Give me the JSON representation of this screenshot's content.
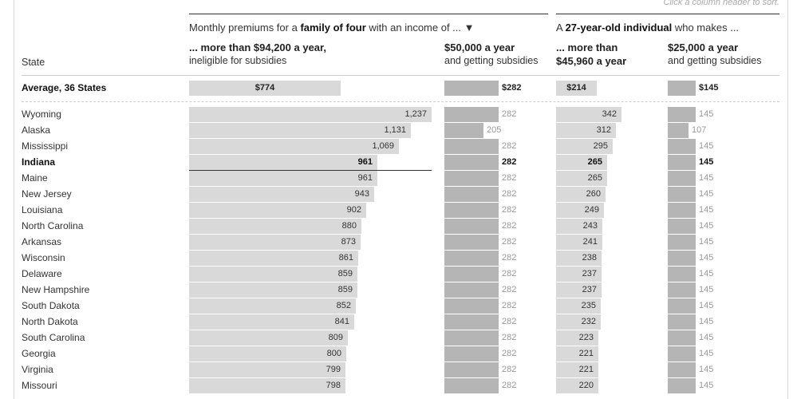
{
  "sort_hint": "Click a column header to sort.",
  "groups": [
    {
      "pre": "Monthly premiums for a ",
      "bold": "family of four",
      "post": " with an income of ... ▼"
    },
    {
      "pre": "A ",
      "bold": "27-year-old individual",
      "post": " who makes ..."
    }
  ],
  "columns": [
    {
      "line1": "... more than $94,200 a year,",
      "line2": "ineligible for subsidies"
    },
    {
      "line1": "$50,000 a year",
      "line2": "and getting subsidies"
    },
    {
      "line1": "... more than",
      "line2": "$45,960 a year"
    },
    {
      "line1": "$25,000 a year",
      "line2": "and getting subsidies"
    }
  ],
  "state_header": "State",
  "colors": {
    "bar_light": "#d9d9d9",
    "bar_dark": "#b5b5b5",
    "text_dark": "#333333",
    "text_muted": "#999999"
  },
  "chart_data": {
    "type": "bar",
    "orientation": "horizontal",
    "average": {
      "label": "Average, 36 States",
      "values": [
        "$774",
        "$282",
        "$214",
        "$145"
      ],
      "numeric": [
        774,
        282,
        214,
        145
      ]
    },
    "highlight": "Indiana",
    "rows": [
      {
        "state": "Wyoming",
        "values": [
          1237,
          282,
          342,
          145
        ]
      },
      {
        "state": "Alaska",
        "values": [
          1131,
          205,
          312,
          107
        ]
      },
      {
        "state": "Mississippi",
        "values": [
          1069,
          282,
          295,
          145
        ]
      },
      {
        "state": "Indiana",
        "values": [
          961,
          282,
          265,
          145
        ]
      },
      {
        "state": "Maine",
        "values": [
          961,
          282,
          265,
          145
        ]
      },
      {
        "state": "New Jersey",
        "values": [
          943,
          282,
          260,
          145
        ]
      },
      {
        "state": "Louisiana",
        "values": [
          902,
          282,
          249,
          145
        ]
      },
      {
        "state": "North Carolina",
        "values": [
          880,
          282,
          243,
          145
        ]
      },
      {
        "state": "Arkansas",
        "values": [
          873,
          282,
          241,
          145
        ]
      },
      {
        "state": "Wisconsin",
        "values": [
          861,
          282,
          238,
          145
        ]
      },
      {
        "state": "Delaware",
        "values": [
          859,
          282,
          237,
          145
        ]
      },
      {
        "state": "New Hampshire",
        "values": [
          859,
          282,
          237,
          145
        ]
      },
      {
        "state": "South Dakota",
        "values": [
          852,
          282,
          235,
          145
        ]
      },
      {
        "state": "North Dakota",
        "values": [
          841,
          282,
          232,
          145
        ]
      },
      {
        "state": "South Carolina",
        "values": [
          809,
          282,
          223,
          145
        ]
      },
      {
        "state": "Georgia",
        "values": [
          800,
          282,
          221,
          145
        ]
      },
      {
        "state": "Virginia",
        "values": [
          799,
          282,
          221,
          145
        ]
      },
      {
        "state": "Missouri",
        "values": [
          798,
          282,
          220,
          145
        ]
      }
    ]
  }
}
